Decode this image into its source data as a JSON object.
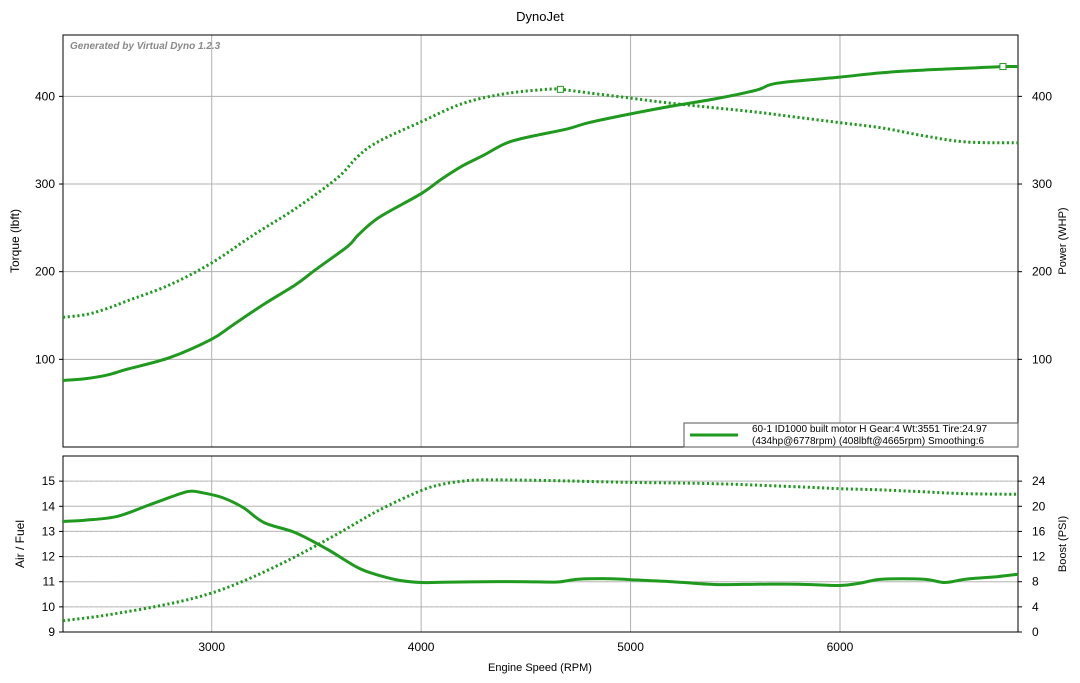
{
  "title": "DynoJet",
  "watermark": "Generated by Virtual Dyno 1.2.3",
  "colors": {
    "series": "#1f9a1f",
    "grid": "#b0b0b0",
    "grid_dotted": "#c8c8c8",
    "axis": "#000000",
    "legend_border": "#555555"
  },
  "legend": {
    "line1": "60-1 ID1000 built motor H Gear:4 Wt:3551 Tire:24.97",
    "line2": "(434hp@6778rpm) (408lbft@4665rpm) Smoothing:6"
  },
  "chart_data": [
    {
      "type": "line",
      "panel": "top",
      "title": "DynoJet",
      "xlabel": "Engine Speed (RPM)",
      "ylabel": "Torque (lbft)",
      "y2label": "Power (WHP)",
      "xlim": [
        2290,
        6850
      ],
      "ylim": [
        0,
        470
      ],
      "y2lim": [
        0,
        470
      ],
      "xticks": [
        3000,
        4000,
        5000,
        6000
      ],
      "yticks": [
        100,
        200,
        300,
        400
      ],
      "y2ticks": [
        100,
        200,
        300,
        400
      ],
      "grid": true,
      "legend_position": "bottom-right",
      "series": [
        {
          "name": "Power (WHP)",
          "style": "solid",
          "axis": "right",
          "marker": {
            "x": 6778,
            "y": 434
          },
          "x": [
            2290,
            2400,
            2500,
            2600,
            2800,
            3000,
            3100,
            3250,
            3400,
            3500,
            3650,
            3700,
            3800,
            4000,
            4100,
            4200,
            4300,
            4400,
            4500,
            4700,
            4800,
            5000,
            5200,
            5400,
            5600,
            5700,
            6000,
            6200,
            6400,
            6600,
            6778,
            6850
          ],
          "y": [
            76,
            78,
            82,
            89,
            102,
            123,
            139,
            163,
            185,
            203,
            229,
            242,
            262,
            289,
            306,
            321,
            333,
            346,
            353,
            363,
            370,
            380,
            389,
            397,
            407,
            415,
            422,
            427,
            430,
            432,
            434,
            434
          ]
        },
        {
          "name": "Torque (lbft)",
          "style": "dotted",
          "axis": "left",
          "marker": {
            "x": 4665,
            "y": 408
          },
          "x": [
            2290,
            2400,
            2500,
            2600,
            2800,
            3000,
            3200,
            3400,
            3600,
            3700,
            3800,
            4000,
            4200,
            4400,
            4600,
            4665,
            4800,
            5000,
            5200,
            5400,
            5600,
            5800,
            6000,
            6200,
            6400,
            6600,
            6850
          ],
          "y": [
            148,
            151,
            158,
            167,
            185,
            210,
            242,
            272,
            307,
            332,
            349,
            371,
            392,
            403,
            408,
            408,
            404,
            398,
            392,
            387,
            382,
            376,
            370,
            364,
            355,
            348,
            347
          ]
        }
      ]
    },
    {
      "type": "line",
      "panel": "bottom",
      "xlabel": "Engine Speed (RPM)",
      "ylabel": "Air / Fuel",
      "y2label": "Boost (PSI)",
      "xlim": [
        2290,
        6850
      ],
      "ylim": [
        9,
        16
      ],
      "y2lim": [
        0,
        28
      ],
      "xticks": [
        3000,
        4000,
        5000,
        6000
      ],
      "yticks": [
        9,
        10,
        11,
        12,
        13,
        14,
        15
      ],
      "y2ticks": [
        0,
        4,
        8,
        12,
        16,
        20,
        24
      ],
      "grid": true,
      "series": [
        {
          "name": "Air / Fuel",
          "style": "solid",
          "axis": "left",
          "x": [
            2290,
            2400,
            2550,
            2700,
            2850,
            2900,
            2950,
            3050,
            3150,
            3250,
            3400,
            3550,
            3700,
            3800,
            3900,
            4000,
            4100,
            4300,
            4500,
            4650,
            4750,
            4900,
            5000,
            5200,
            5400,
            5600,
            5800,
            6000,
            6100,
            6200,
            6400,
            6500,
            6600,
            6750,
            6850
          ],
          "y": [
            13.4,
            13.45,
            13.6,
            14.05,
            14.5,
            14.6,
            14.55,
            14.35,
            13.95,
            13.35,
            12.95,
            12.3,
            11.55,
            11.25,
            11.05,
            10.97,
            10.98,
            11.0,
            11.0,
            10.99,
            11.1,
            11.12,
            11.08,
            11.0,
            10.89,
            10.9,
            10.9,
            10.85,
            10.95,
            11.1,
            11.1,
            10.97,
            11.1,
            11.2,
            11.3
          ]
        },
        {
          "name": "Boost (PSI)",
          "style": "dotted",
          "axis": "right",
          "x": [
            2290,
            2500,
            2800,
            3000,
            3200,
            3400,
            3600,
            3800,
            4000,
            4100,
            4200,
            4300,
            4600,
            5000,
            5400,
            5800,
            6000,
            6200,
            6400,
            6600,
            6850
          ],
          "y": [
            1.8,
            2.7,
            4.5,
            6.2,
            8.8,
            12.0,
            15.6,
            19.4,
            22.5,
            23.5,
            24.0,
            24.2,
            24.1,
            23.8,
            23.6,
            23.1,
            22.8,
            22.6,
            22.3,
            22.0,
            21.9
          ]
        }
      ]
    }
  ]
}
